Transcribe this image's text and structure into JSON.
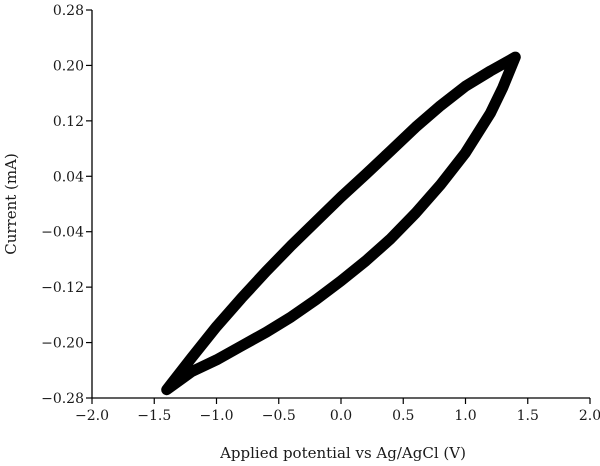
{
  "chart_data": {
    "type": "line",
    "title": "",
    "xlabel": "Applied potential vs Ag/AgCl (V)",
    "ylabel": "Current (mA)",
    "xlim": [
      -2.0,
      2.0
    ],
    "ylim": [
      -0.28,
      0.28
    ],
    "x_ticks": [
      -2.0,
      -1.5,
      -1.0,
      -0.5,
      0.0,
      0.5,
      1.0,
      1.5,
      2.0
    ],
    "x_tick_labels": [
      "−2.0",
      "−1.5",
      "−1.0",
      "−0.5",
      "0.0",
      "0.5",
      "1.0",
      "1.5",
      "2.0"
    ],
    "y_ticks": [
      0.28,
      0.2,
      0.12,
      0.04,
      -0.04,
      -0.12,
      -0.2,
      -0.28
    ],
    "y_tick_labels": [
      "0.28",
      "0.20",
      "0.12",
      "0.04",
      "−0.04",
      "−0.12",
      "−0.20",
      "−0.28"
    ],
    "grid": false,
    "series": [
      {
        "color": "#000000",
        "x": [
          -1.4,
          -1.2,
          -1.0,
          -0.8,
          -0.6,
          -0.4,
          -0.2,
          0.0,
          0.2,
          0.4,
          0.6,
          0.8,
          1.0,
          1.2,
          1.4,
          1.3,
          1.2,
          1.0,
          0.8,
          0.6,
          0.4,
          0.2,
          0.0,
          -0.2,
          -0.4,
          -0.6,
          -0.8,
          -1.0,
          -1.2,
          -1.4
        ],
        "y": [
          -0.268,
          -0.222,
          -0.177,
          -0.136,
          -0.097,
          -0.06,
          -0.025,
          0.01,
          0.043,
          0.077,
          0.111,
          0.142,
          0.17,
          0.192,
          0.212,
          0.168,
          0.131,
          0.074,
          0.028,
          -0.013,
          -0.05,
          -0.082,
          -0.111,
          -0.138,
          -0.163,
          -0.185,
          -0.205,
          -0.225,
          -0.242,
          -0.268
        ]
      }
    ]
  }
}
